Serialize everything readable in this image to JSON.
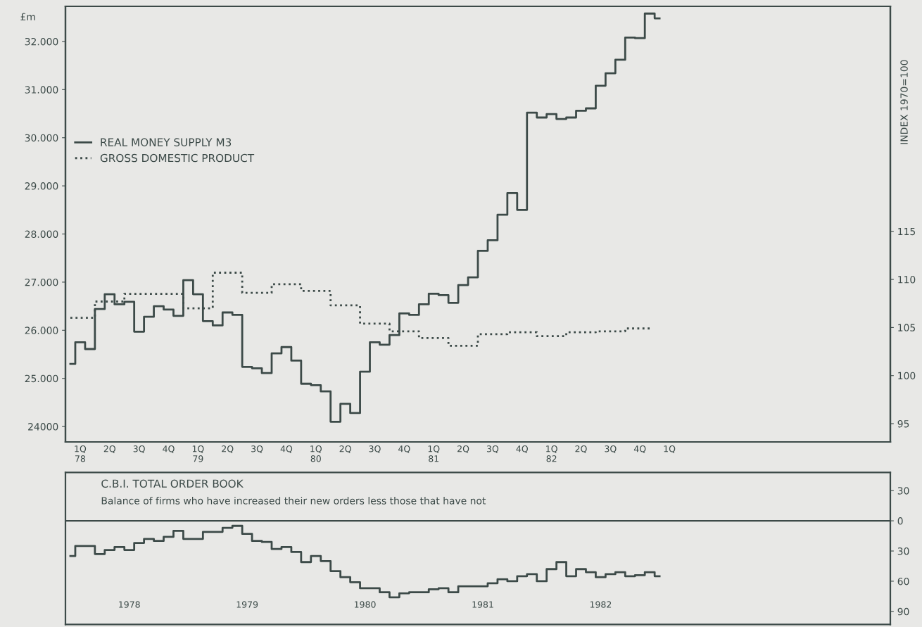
{
  "chart_data": [
    {
      "type": "step",
      "ylabel": "£m",
      "y2label": "INDEX 1970=100",
      "legend": "top left",
      "grid": false,
      "categories": [
        null,
        "1Q\n78",
        null,
        null,
        "2Q",
        null,
        null,
        "3Q",
        null,
        null,
        "4Q",
        null,
        null,
        "1Q\n79",
        null,
        null,
        "2Q",
        null,
        null,
        "3Q",
        null,
        null,
        "4Q",
        null,
        null,
        "1Q\n80",
        null,
        null,
        "2Q",
        null,
        null,
        "3Q",
        null,
        null,
        "4Q",
        null,
        null,
        "1Q\n81",
        null,
        null,
        "2Q",
        null,
        null,
        "3Q",
        null,
        null,
        "4Q",
        null,
        null,
        "1Q\n82",
        null,
        null,
        "2Q",
        null,
        null,
        "3Q",
        null,
        null,
        "4Q",
        null,
        null,
        "1Q",
        null,
        null,
        null,
        null,
        null,
        null,
        null,
        null,
        null,
        null,
        null,
        null,
        null,
        null,
        null,
        null,
        null,
        null,
        null,
        null,
        null,
        null
      ],
      "ylim": [
        23680,
        32730
      ],
      "yticks": [
        {
          "value": 24000,
          "label": "24000"
        },
        {
          "value": 25000,
          "label": "25.000"
        },
        {
          "value": 26000,
          "label": "26.000"
        },
        {
          "value": 27000,
          "label": "27.000"
        },
        {
          "value": 28000,
          "label": "28.000"
        },
        {
          "value": 29000,
          "label": "29.000"
        },
        {
          "value": 30000,
          "label": "30.000"
        },
        {
          "value": 31000,
          "label": "31.000"
        },
        {
          "value": 32000,
          "label": "32.000"
        }
      ],
      "y2lim": [
        93.1,
        138.4
      ],
      "y2ticks": [
        95,
        100,
        105,
        110,
        115
      ],
      "series": [
        {
          "name": "REAL MONEY SUPPLY M3",
          "color": "#3c4a48",
          "line_style": "solid",
          "values": [
            25300,
            25750,
            25610,
            26440,
            26750,
            26540,
            26590,
            25970,
            26280,
            26500,
            26430,
            26300,
            27040,
            26750,
            26190,
            26100,
            26370,
            26320,
            25240,
            25210,
            25110,
            25520,
            25650,
            25370,
            24890,
            24860,
            24730,
            24100,
            24470,
            24280,
            25140,
            25750,
            25700,
            25900,
            26350,
            26320,
            26540,
            26760,
            26730,
            26570,
            26940,
            27100,
            27650,
            27870,
            28400,
            28850,
            28500,
            30520,
            30420,
            30490,
            30390,
            30420,
            30560,
            30610,
            31080,
            31340,
            31620,
            32080,
            32070,
            32580,
            32480,
            null,
            null,
            null,
            null,
            null,
            null,
            null,
            null,
            null,
            null,
            null,
            null,
            null,
            null,
            null,
            null,
            null,
            null,
            null,
            null,
            null,
            null,
            null
          ]
        },
        {
          "name": "GROSS DOMESTIC PRODUCT",
          "color": "#3c4a48",
          "line_style": "dotted",
          "axis": "y2",
          "values": [
            106.0,
            106.0,
            106.0,
            107.7,
            107.7,
            107.7,
            108.5,
            108.5,
            108.5,
            108.5,
            108.5,
            108.5,
            107.0,
            107.0,
            107.0,
            110.7,
            110.7,
            110.7,
            108.6,
            108.6,
            108.6,
            109.5,
            109.5,
            109.5,
            108.8,
            108.8,
            108.8,
            107.3,
            107.3,
            107.3,
            105.4,
            105.4,
            105.4,
            104.6,
            104.6,
            104.6,
            103.9,
            103.9,
            103.9,
            103.1,
            103.1,
            103.1,
            104.3,
            104.3,
            104.3,
            104.5,
            104.5,
            104.5,
            104.1,
            104.1,
            104.1,
            104.5,
            104.5,
            104.5,
            104.6,
            104.6,
            104.6,
            104.9,
            104.9,
            104.9,
            null,
            null,
            null,
            null,
            null,
            null,
            null,
            null,
            null,
            null,
            null,
            null,
            null,
            null,
            null,
            null,
            null,
            null,
            null,
            null,
            null,
            null,
            null,
            null
          ]
        }
      ]
    },
    {
      "type": "step",
      "title": "C.B.I. TOTAL ORDER BOOK",
      "subtitle": "Balance of firms who have increased their new orders less those that have not",
      "grid": false,
      "categories": [
        null,
        null,
        null,
        null,
        null,
        null,
        "1978",
        null,
        null,
        null,
        null,
        null,
        null,
        null,
        null,
        null,
        null,
        null,
        "1979",
        null,
        null,
        null,
        null,
        null,
        null,
        null,
        null,
        null,
        null,
        null,
        "1980",
        null,
        null,
        null,
        null,
        null,
        null,
        null,
        null,
        null,
        null,
        null,
        "1981",
        null,
        null,
        null,
        null,
        null,
        null,
        null,
        null,
        null,
        null,
        null,
        "1982",
        null,
        null,
        null,
        null,
        null,
        null,
        null,
        null,
        null,
        null,
        null,
        null,
        null,
        null,
        null,
        null,
        null,
        null,
        null,
        null,
        null,
        null,
        null,
        null,
        null,
        null,
        null,
        null,
        null
      ],
      "ylim": [
        -103,
        48
      ],
      "yticks": [
        {
          "value": 30,
          "label": "30"
        },
        0,
        {
          "value": -30,
          "label": "30"
        },
        {
          "value": -60,
          "label": "60"
        },
        {
          "value": -90,
          "label": "90"
        }
      ],
      "ref_lines": [
        {
          "axis": "y",
          "value": 0,
          "color": "#3c4a48"
        }
      ],
      "series": [
        {
          "color": "#3c4a48",
          "line_style": "solid",
          "values": [
            -35,
            -25,
            -25,
            -33,
            -29,
            -26,
            -29,
            -22,
            -18,
            -20,
            -16,
            -10,
            -18,
            -18,
            -11,
            -11,
            -7,
            -5,
            -13,
            -20,
            -21,
            -28,
            -26,
            -31,
            -41,
            -35,
            -40,
            -50,
            -56,
            -61,
            -67,
            -67,
            -71,
            -76,
            -72,
            -71,
            -71,
            -68,
            -67,
            -71,
            -65,
            -65,
            -65,
            -62,
            -58,
            -60,
            -55,
            -53,
            -60,
            -48,
            -41,
            -55,
            -48,
            -51,
            -56,
            -53,
            -51,
            -55,
            -54,
            -51,
            -55,
            null,
            null,
            null,
            null,
            null,
            null,
            null,
            null,
            null,
            null,
            null,
            null,
            null,
            null,
            null,
            null,
            null,
            null,
            null,
            null,
            null,
            null,
            null
          ]
        }
      ]
    }
  ]
}
